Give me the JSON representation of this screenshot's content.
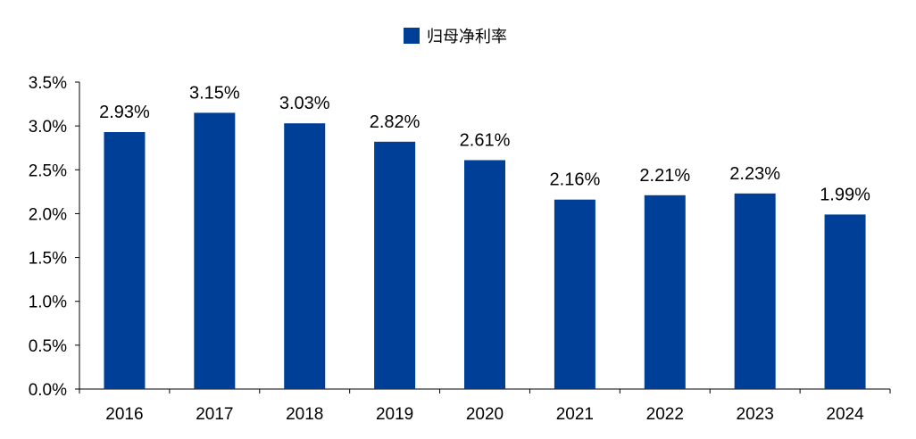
{
  "chart_data": {
    "type": "bar",
    "title": "",
    "xlabel": "",
    "ylabel": "",
    "categories": [
      "2016",
      "2017",
      "2018",
      "2019",
      "2020",
      "2021",
      "2022",
      "2023",
      "2024"
    ],
    "series": [
      {
        "name": "归母净利率",
        "color": "#003F98",
        "values": [
          2.93,
          3.15,
          3.03,
          2.82,
          2.61,
          2.16,
          2.21,
          2.23,
          1.99
        ],
        "labels": [
          "2.93%",
          "3.15%",
          "3.03%",
          "2.82%",
          "2.61%",
          "2.16%",
          "2.21%",
          "2.23%",
          "1.99%"
        ]
      }
    ],
    "ylim": [
      0,
      3.5
    ],
    "yticks": [
      0,
      0.5,
      1.0,
      1.5,
      2.0,
      2.5,
      3.0,
      3.5
    ],
    "ytick_labels": [
      "0.0%",
      "0.5%",
      "1.0%",
      "1.5%",
      "2.0%",
      "2.5%",
      "3.0%",
      "3.5%"
    ],
    "legend_position": "top-center",
    "grid": false
  }
}
